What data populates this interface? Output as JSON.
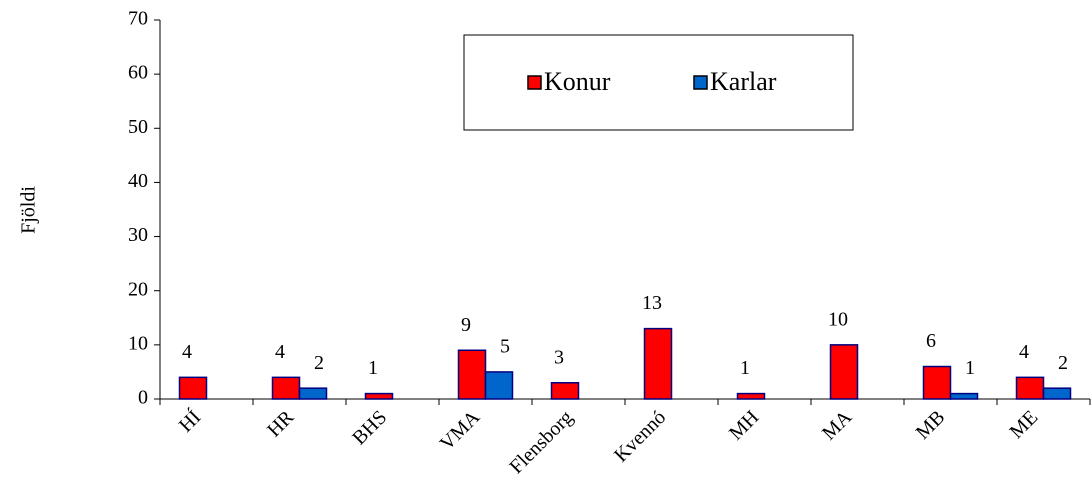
{
  "chart_data": {
    "type": "bar",
    "y_label": "Fjöldi",
    "categories": [
      "HÍ",
      "HR",
      "BHS",
      "VMA",
      "Flensborg",
      "Kvennó",
      "MH",
      "MA",
      "MB",
      "ME"
    ],
    "series": [
      {
        "name": "Konur",
        "color": "#ff0000",
        "values": [
          4,
          4,
          1,
          9,
          3,
          13,
          1,
          10,
          6,
          4
        ]
      },
      {
        "name": "Karlar",
        "color": "#0066cc",
        "values": [
          null,
          2,
          null,
          5,
          null,
          null,
          null,
          null,
          1,
          2
        ]
      }
    ],
    "ylim": [
      0,
      70
    ],
    "yticks": [
      0,
      10,
      20,
      30,
      40,
      50,
      60,
      70
    ],
    "legend": "top"
  }
}
